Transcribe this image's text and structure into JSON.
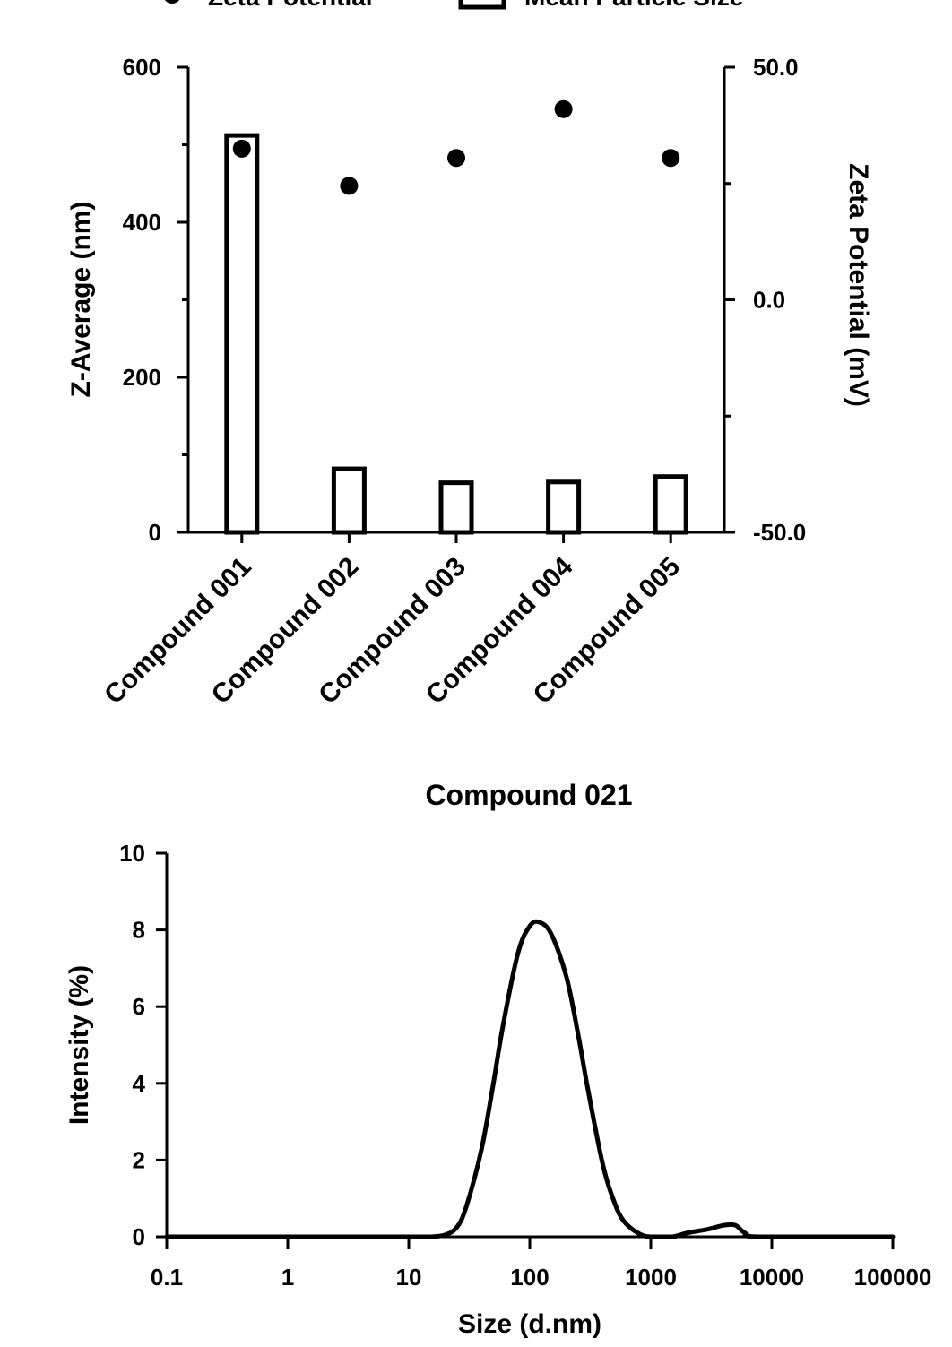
{
  "chart_data": [
    {
      "type": "bar",
      "legend": [
        {
          "label": "Zeta Potential",
          "marker": "filled-circle"
        },
        {
          "label": "Mean Particle Size",
          "marker": "open-bar"
        }
      ],
      "categories": [
        "Compound 001",
        "Compound 002",
        "Compound 003",
        "Compound 004",
        "Compound 005"
      ],
      "series": [
        {
          "name": "Mean Particle Size",
          "axis": "left",
          "kind": "bar",
          "values": [
            512,
            82,
            64,
            65,
            72
          ]
        },
        {
          "name": "Zeta Potential",
          "axis": "right",
          "kind": "scatter",
          "values": [
            32.5,
            24.5,
            30.5,
            41,
            30.5
          ]
        }
      ],
      "ylabel": "Z-Average (nm)",
      "ylim": [
        0,
        600
      ],
      "yticks": [
        "0",
        "200",
        "400",
        "600"
      ],
      "y2label": "Zeta Potential (mV)",
      "y2lim": [
        -50,
        50
      ],
      "y2ticks": [
        "-50.0",
        "0.0",
        "50.0"
      ],
      "grid": false,
      "legend_position": "top"
    },
    {
      "type": "line",
      "title": "Compound 021",
      "xlabel": "Size (d.nm)",
      "ylabel": "Intensity (%)",
      "xscale": "log",
      "xlim": [
        0.1,
        100000
      ],
      "ylim": [
        0,
        10
      ],
      "xticks": [
        "0.1",
        "1",
        "10",
        "100",
        "1000",
        "10000",
        "100000"
      ],
      "yticks": [
        "0",
        "2",
        "4",
        "6",
        "8",
        "10"
      ],
      "x": [
        0.1,
        10,
        15,
        20,
        25,
        30,
        40,
        50,
        60,
        80,
        100,
        120,
        150,
        200,
        250,
        300,
        400,
        500,
        600,
        800,
        1000,
        1500,
        2000,
        3000,
        4000,
        5000,
        6000,
        8000,
        100000
      ],
      "y": [
        0,
        0,
        0,
        0.05,
        0.25,
        0.8,
        2.3,
        4.0,
        5.5,
        7.4,
        8.1,
        8.2,
        7.9,
        6.8,
        5.3,
        3.9,
        1.9,
        0.9,
        0.4,
        0.08,
        0,
        0,
        0.1,
        0.2,
        0.3,
        0.3,
        0.1,
        0,
        0
      ],
      "grid": false
    }
  ]
}
